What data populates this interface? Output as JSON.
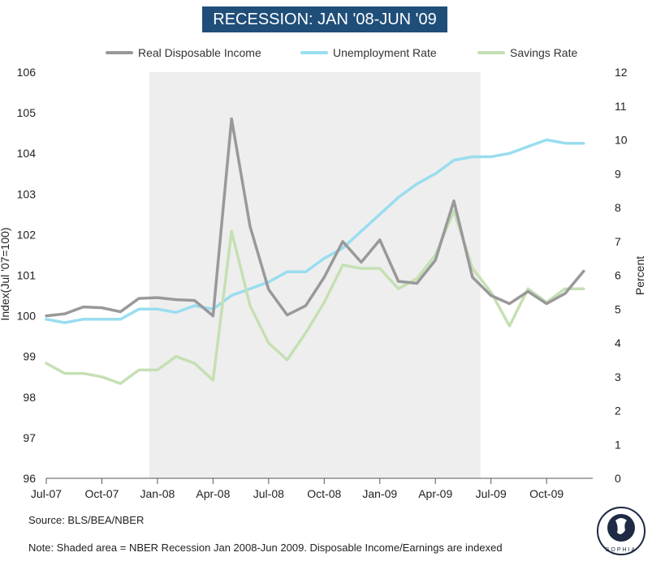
{
  "title": "RECESSION: JAN '08-JUN '09",
  "source_note": "Source: BLS/BEA/NBER",
  "footnote": "Note: Shaded area = NBER Recession Jan 2008-Jun 2009. Disposable Income/Earnings are indexed",
  "logo_text": "SOPHIA",
  "chart_data": {
    "type": "line",
    "x_tick_labels": [
      "Jul-07",
      "Oct-07",
      "Jan-08",
      "Apr-08",
      "Jul-08",
      "Oct-08",
      "Jan-09",
      "Apr-09",
      "Jul-09",
      "Oct-09"
    ],
    "x": [
      "Jul-07",
      "Aug-07",
      "Sep-07",
      "Oct-07",
      "Nov-07",
      "Dec-07",
      "Jan-08",
      "Feb-08",
      "Mar-08",
      "Apr-08",
      "May-08",
      "Jun-08",
      "Jul-08",
      "Aug-08",
      "Sep-08",
      "Oct-08",
      "Nov-08",
      "Dec-08",
      "Jan-09",
      "Feb-09",
      "Mar-09",
      "Apr-09",
      "May-09",
      "Jun-09",
      "Jul-09",
      "Aug-09",
      "Sep-09",
      "Oct-09",
      "Nov-09",
      "Dec-09"
    ],
    "shaded_region": {
      "start": "Jan-08",
      "end": "Jun-09",
      "color": "#eeeeee"
    },
    "y_left": {
      "label": "Index(Jul '07=100)",
      "min": 96,
      "max": 106,
      "ticks": [
        "96",
        "97",
        "98",
        "99",
        "100",
        "101",
        "102",
        "103",
        "104",
        "105",
        "106"
      ]
    },
    "y_right": {
      "label": "Percent",
      "min": 0,
      "max": 12,
      "ticks": [
        "0",
        "1",
        "2",
        "3",
        "4",
        "5",
        "6",
        "7",
        "8",
        "9",
        "10",
        "11",
        "12"
      ]
    },
    "legend_position": "top",
    "grid": false,
    "series": [
      {
        "name": "Real Disposable Income",
        "axis": "left",
        "color": "#999999",
        "values": [
          100.0,
          100.05,
          100.22,
          100.2,
          100.1,
          100.43,
          100.45,
          100.4,
          100.38,
          100.0,
          104.85,
          102.2,
          100.65,
          100.02,
          100.25,
          100.95,
          101.83,
          101.32,
          101.87,
          100.85,
          100.8,
          101.37,
          102.83,
          100.95,
          100.5,
          100.3,
          100.6,
          100.3,
          100.55,
          101.1
        ]
      },
      {
        "name": "Unemployment Rate",
        "axis": "right",
        "color": "#99ddf0",
        "values": [
          4.7,
          4.6,
          4.7,
          4.7,
          4.7,
          5.0,
          5.0,
          4.9,
          5.1,
          5.0,
          5.4,
          5.6,
          5.8,
          6.1,
          6.1,
          6.5,
          6.8,
          7.3,
          7.8,
          8.3,
          8.7,
          9.0,
          9.4,
          9.5,
          9.5,
          9.6,
          9.8,
          10.0,
          9.9,
          9.9
        ]
      },
      {
        "name": "Savings Rate",
        "axis": "right",
        "color": "#c5e0b4",
        "values": [
          3.4,
          3.1,
          3.1,
          3.0,
          2.8,
          3.2,
          3.2,
          3.6,
          3.4,
          2.9,
          7.3,
          5.1,
          4.0,
          3.5,
          4.3,
          5.2,
          6.3,
          6.2,
          6.2,
          5.6,
          5.9,
          6.6,
          7.9,
          6.2,
          5.5,
          4.5,
          5.6,
          5.2,
          5.6,
          5.6
        ]
      }
    ]
  }
}
